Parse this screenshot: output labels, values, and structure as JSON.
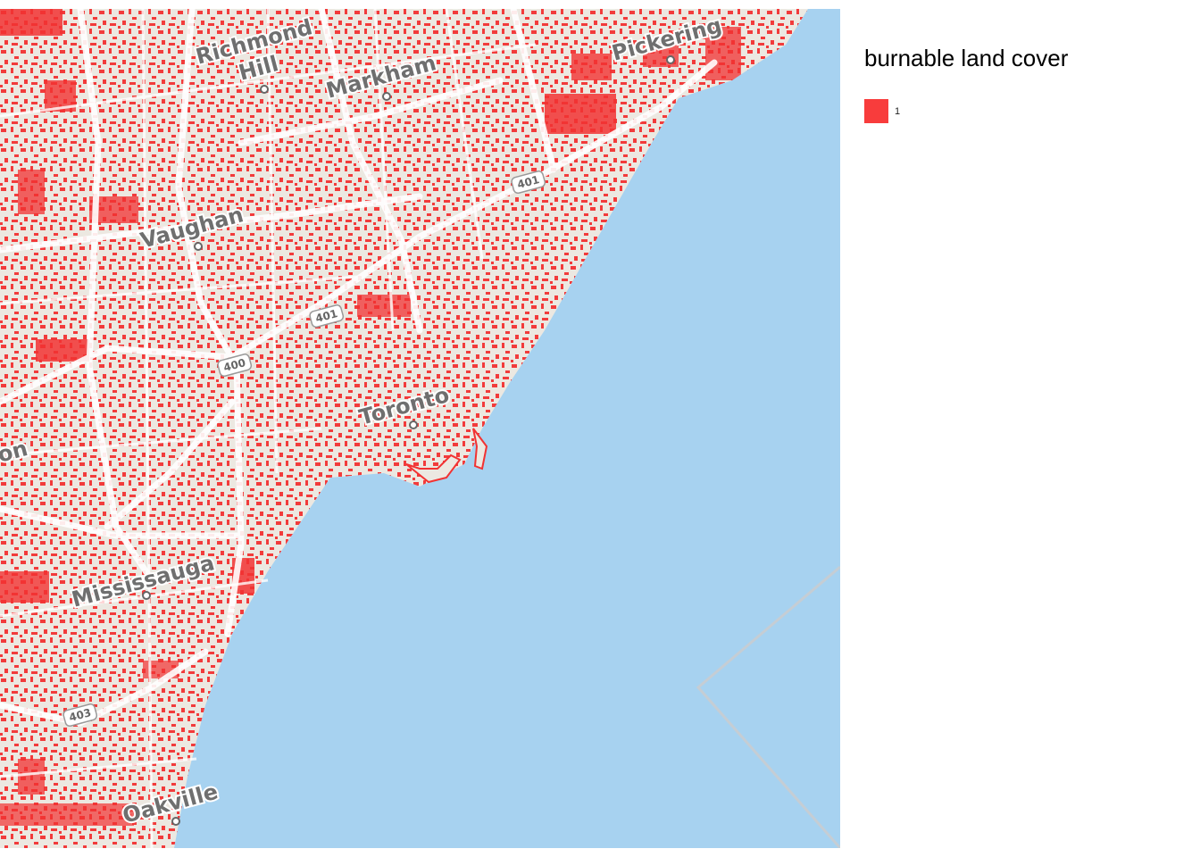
{
  "map": {
    "labels": {
      "richmond_hill_line1": "Richmond",
      "richmond_hill_line2": "Hill",
      "markham": "Markham",
      "pickering": "Pickering",
      "vaughan": "Vaughan",
      "toronto": "Toronto",
      "brampton_partial": "on",
      "mississauga": "Mississauga",
      "oakville": "Oakville"
    },
    "highway_shields": [
      "401",
      "401",
      "400",
      "403"
    ],
    "colors": {
      "land": "#ece8e1",
      "water": "#a7d2f0",
      "roads": "#ffffff",
      "burnable": "#f23232"
    }
  },
  "legend": {
    "title": "burnable land cover",
    "items": [
      {
        "label": "1",
        "color": "#f83c3c"
      }
    ]
  }
}
